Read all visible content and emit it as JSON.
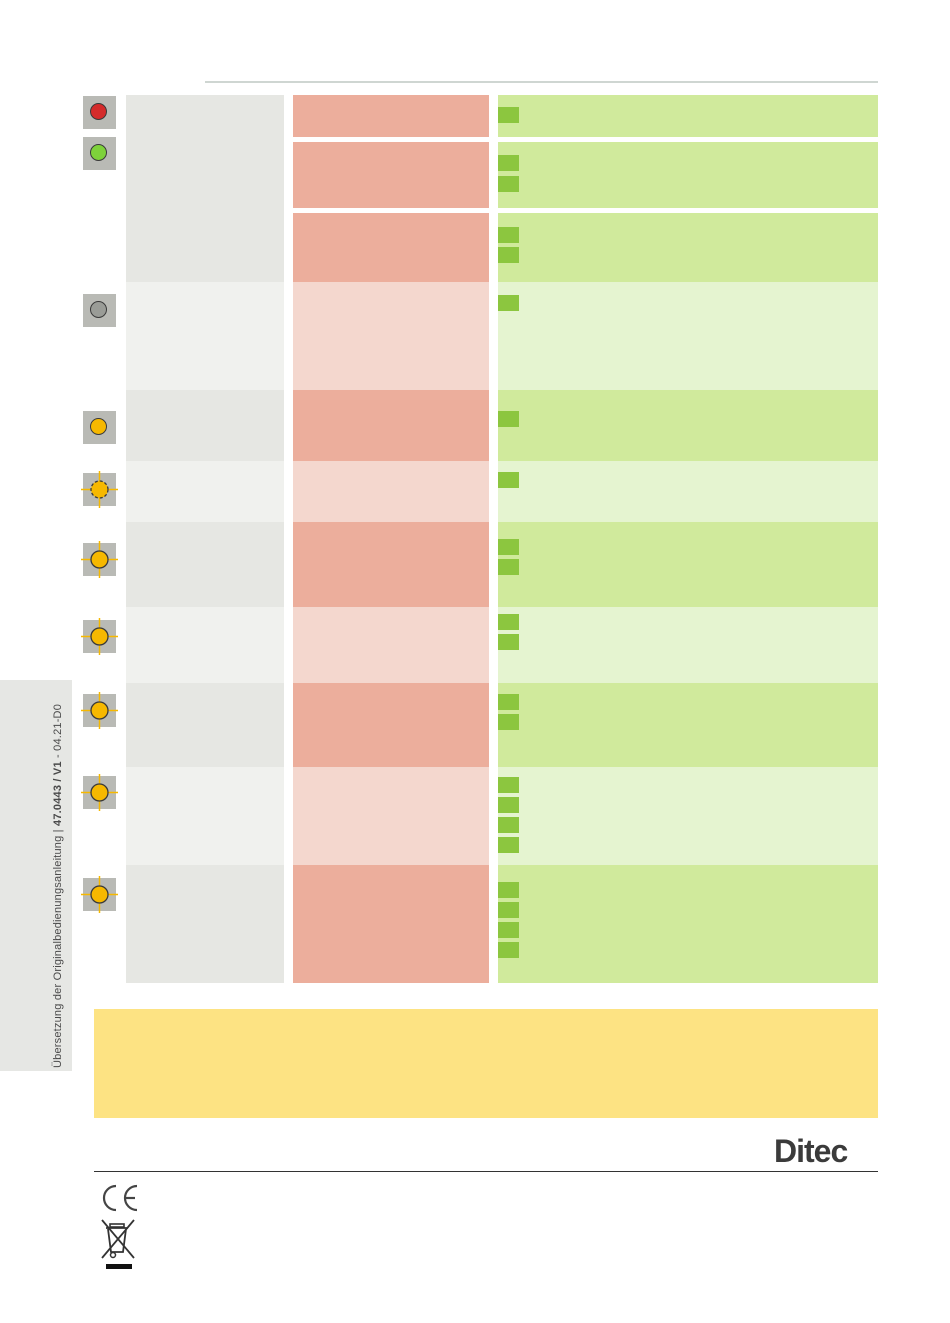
{
  "footer": {
    "side_text_prefix": "Übersetzung der Originalbedienungsanleitung | ",
    "side_text_doc": "47.0443 / V1",
    "side_text_suffix": " - 04.21-D0"
  },
  "brand": {
    "logo_text": "Ditec"
  },
  "led_rows": [
    {
      "led": "red-led",
      "state": "steady",
      "color": "#d42b2b"
    },
    {
      "led": "green-led",
      "state": "steady",
      "color": "#7ed23b"
    },
    {
      "led": "grey-led",
      "state": "off",
      "color": "#9a9c97"
    },
    {
      "led": "yellow-led",
      "state": "steady",
      "color": "#f6b800"
    },
    {
      "led": "yellow-led",
      "state": "flashing",
      "color": "#f6b800"
    },
    {
      "led": "yellow-led",
      "state": "flashing",
      "color": "#f6b800"
    },
    {
      "led": "yellow-led",
      "state": "flashing",
      "color": "#f6b800"
    },
    {
      "led": "yellow-led",
      "state": "flashing",
      "color": "#f6b800"
    },
    {
      "led": "yellow-led",
      "state": "flashing",
      "color": "#f6b800"
    },
    {
      "led": "yellow-led",
      "state": "flashing",
      "color": "#f6b800"
    }
  ],
  "icons": {
    "ce_mark": "ce-mark-icon",
    "weee": "weee-crossed-bin-icon"
  },
  "colors": {
    "note_box": "#fde383",
    "check_square": "#8cc63f"
  }
}
